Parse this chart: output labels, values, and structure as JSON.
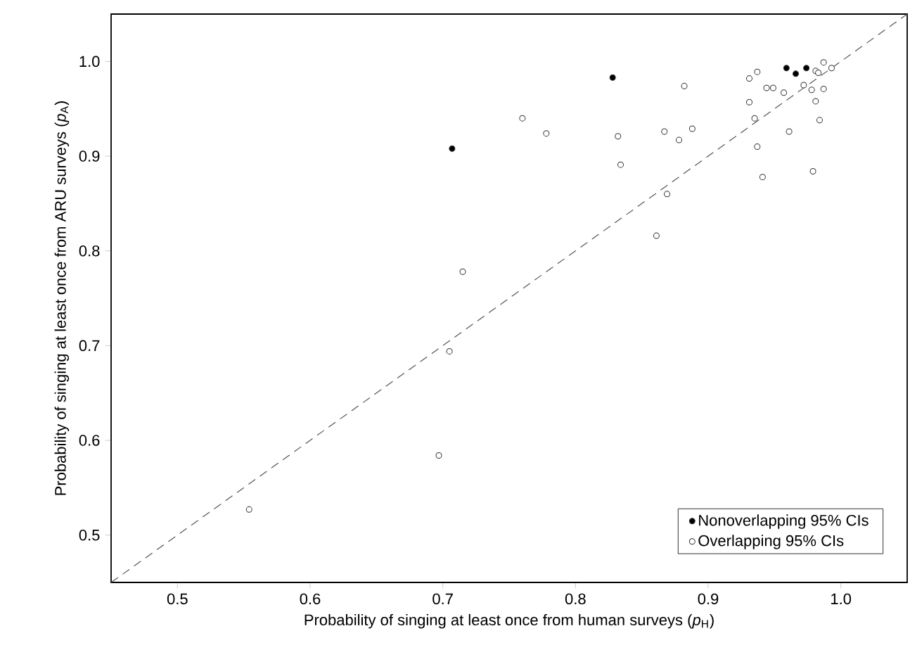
{
  "chart_data": {
    "type": "scatter",
    "xlabel": "Probability of singing at least once from human surveys (*p*$_{H}$)",
    "ylabel": "Probability of singing at least once from ARU surveys (*p*$_{A}$)",
    "xlim": [
      0.45,
      1.05
    ],
    "ylim": [
      0.45,
      1.05
    ],
    "xticks": [
      {
        "value": 0.5,
        "label": "0.5"
      },
      {
        "value": 0.6,
        "label": "0.6"
      },
      {
        "value": 0.7,
        "label": "0.7"
      },
      {
        "value": 0.8,
        "label": "0.8"
      },
      {
        "value": 0.9,
        "label": "0.9"
      },
      {
        "value": 1.0,
        "label": "1.0"
      }
    ],
    "yticks": [
      {
        "value": 0.5,
        "label": "0.5"
      },
      {
        "value": 0.6,
        "label": "0.6"
      },
      {
        "value": 0.7,
        "label": "0.7"
      },
      {
        "value": 0.8,
        "label": "0.8"
      },
      {
        "value": 0.9,
        "label": "0.9"
      },
      {
        "value": 1.0,
        "label": "1.0"
      }
    ],
    "grid": false,
    "legend": "bottom right",
    "series": [
      {
        "name": "Nonoverlapping 95% CIs",
        "color": "#000000",
        "marker": "circle",
        "x": [
          0.828,
          0.707,
          0.959,
          0.966,
          0.974
        ],
        "values": [
          0.983,
          0.908,
          0.993,
          0.987,
          0.993
        ]
      },
      {
        "name": "Overlapping 95% CIs",
        "color": "#ffffff",
        "marker": "circle",
        "x": [
          0.554,
          0.697,
          0.705,
          0.715,
          0.76,
          0.778,
          0.832,
          0.834,
          0.861,
          0.869,
          0.867,
          0.878,
          0.882,
          0.888,
          0.931,
          0.937,
          0.931,
          0.935,
          0.937,
          0.941,
          0.944,
          0.949,
          0.957,
          0.961,
          0.972,
          0.978,
          0.981,
          0.981,
          0.984,
          0.979,
          0.987,
          0.987,
          0.993,
          0.983
        ],
        "values": [
          0.527,
          0.584,
          0.694,
          0.778,
          0.94,
          0.924,
          0.921,
          0.891,
          0.816,
          0.86,
          0.926,
          0.917,
          0.974,
          0.929,
          0.982,
          0.989,
          0.957,
          0.94,
          0.91,
          0.878,
          0.972,
          0.972,
          0.967,
          0.926,
          0.975,
          0.97,
          0.99,
          0.958,
          0.938,
          0.884,
          0.999,
          0.971,
          0.993,
          0.988
        ]
      },
      {
        "type": "line",
        "color": "#555555",
        "line_style": "dashed",
        "marker": "none",
        "x": [
          0.45,
          1.05
        ],
        "values": [
          0.45,
          1.05
        ]
      }
    ]
  }
}
